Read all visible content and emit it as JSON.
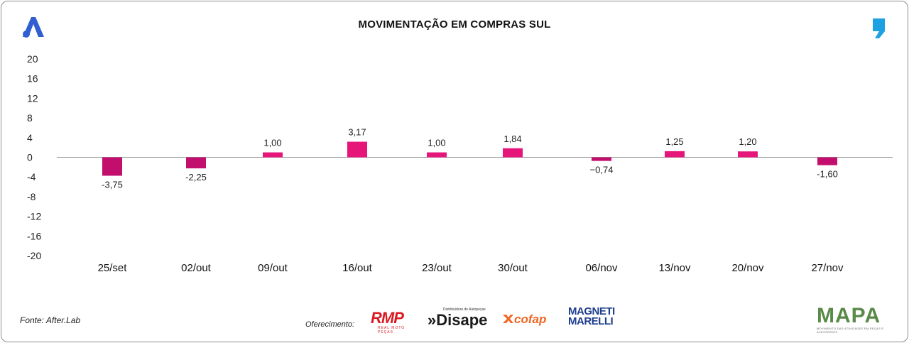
{
  "chart_data": {
    "type": "bar",
    "title": "MOVIMENTAÇÃO EM COMPRAS SUL",
    "categories": [
      "25/set",
      "02/out",
      "09/out",
      "16/out",
      "23/out",
      "30/out",
      "06/nov",
      "13/nov",
      "20/nov",
      "27/nov"
    ],
    "values": [
      -3.75,
      -2.25,
      1.0,
      3.17,
      1.0,
      1.84,
      -0.74,
      1.25,
      1.2,
      -1.6
    ],
    "data_labels": [
      "-3,75",
      "-2,25",
      "1,00",
      "3,17",
      "1,00",
      "1,84",
      "−0,74",
      "1,25",
      "1,20",
      "-1,60"
    ],
    "y_ticks": [
      20,
      16,
      12,
      8,
      4,
      0,
      -4,
      -8,
      -12,
      -16,
      -20
    ],
    "ylim": [
      -20,
      20
    ],
    "xlabel": "",
    "ylabel": "",
    "grid": false,
    "colors": {
      "positive": "#e6157a",
      "negative": "#c20f6e",
      "axis": "#9a9a9a"
    }
  },
  "footer": {
    "source": "Fonte: After.Lab",
    "offer_label": "Oferecimento:"
  },
  "sponsors": {
    "rmp": {
      "name": "RMP",
      "tagline": "REAL MOTO PEÇAS"
    },
    "disape": {
      "name": "»Disape",
      "tagline": "Distribuidora de Autopeças"
    },
    "cofap": {
      "name": "cofap"
    },
    "magneti": {
      "line1": "MAGNETI",
      "line2": "MARELLI"
    }
  },
  "brand": {
    "mapa": "MAPA",
    "mapa_tagline": "MOVIMENTO DAS ATIVIDADES EM PEÇAS E ACESSÓRIOS"
  },
  "icons": {
    "left": "after-lab-a-icon",
    "right": "quote-mark-icon"
  }
}
